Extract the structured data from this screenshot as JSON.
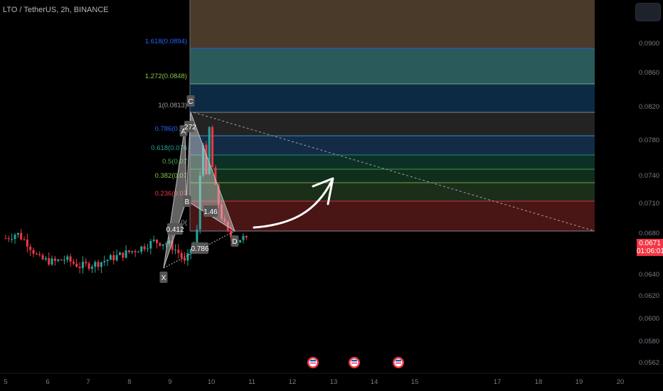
{
  "header": {
    "symbol": "LTO / TetherUS",
    "interval": "2h",
    "exchange": "BINANCE"
  },
  "last_price": {
    "value": "0.0671",
    "countdown": "01:06:01",
    "color": "#f23645"
  },
  "colors": {
    "up": "#26a69a",
    "down": "#f23645",
    "background": "#000000",
    "axis_text": "#787b86",
    "pattern_fill": "#d9d9d9",
    "arrow": "#ffffff"
  },
  "chart_data": {
    "type": "candlestick",
    "y_axis": {
      "ticks": [
        "0.0900",
        "0.0860",
        "0.0820",
        "0.0780",
        "0.0740",
        "0.0710",
        "0.0680",
        "0.0640",
        "0.0620",
        "0.0600",
        "0.0580",
        "0.0562"
      ],
      "range": [
        0.0555,
        0.0955
      ]
    },
    "x_axis": {
      "ticks": [
        "5",
        "6",
        "7",
        "8",
        "9",
        "10",
        "11",
        "12",
        "13",
        "14",
        "15",
        "17",
        "18",
        "19",
        "20"
      ],
      "unit": "day"
    },
    "fib_levels": [
      {
        "ratio": "1.618",
        "price": "0.0894",
        "label": "1.618(0.0894)",
        "label_color": "#2962ff",
        "line_color": "#2962ff",
        "fill": "#2a5a59"
      },
      {
        "ratio": "1.272",
        "price": "0.0848",
        "label": "1.272(0.0848)",
        "label_color": "#8bc34a",
        "line_color": "#81c784",
        "fill": "#0d2a44"
      },
      {
        "ratio": "1",
        "price": "0.0813",
        "label": "1(0.0813)",
        "label_color": "#9e9e9e",
        "line_color": "#9e9e9e",
        "fill": "#232323"
      },
      {
        "ratio": "0.786",
        "price": "0.078",
        "label": "0.786(0.07",
        "label_color": "#2962ff",
        "line_color": "#42a5f5",
        "fill": "#142b45"
      },
      {
        "ratio": "0.618",
        "price": "0.076",
        "label": "0.618(0.076",
        "label_color": "#26a69a",
        "line_color": "#26a69a",
        "fill": "#0c3026"
      },
      {
        "ratio": "0.5",
        "price": "0.074",
        "label": "0.5(0.07",
        "label_color": "#4caf50",
        "line_color": "#4caf50",
        "fill": "#0f2e1b"
      },
      {
        "ratio": "0.382",
        "price": "0.073",
        "label": "0.382(0.07",
        "label_color": "#8bc34a",
        "line_color": "#8bc34a",
        "fill": "#1b2e1a"
      },
      {
        "ratio": "0.236",
        "price": "0.071",
        "label": "0.236(0.07",
        "label_color": "#f23645",
        "line_color": "#f23645",
        "fill": "#4a1515"
      },
      {
        "ratio": "0",
        "price": "0.068",
        "label": "0(",
        "label_color": "#9e9e9e",
        "line_color": "#9e9e9e",
        "fill": null
      }
    ],
    "fib_extension_fill_top": "#4a3a2a",
    "harmonic_points": [
      {
        "name": "X",
        "price": 0.0648,
        "day": 9.85
      },
      {
        "name": "A",
        "price": 0.0793,
        "day": 10.32
      },
      {
        "name": "B",
        "price": 0.0714,
        "day": 10.4
      },
      {
        "name": "C",
        "price": 0.0813,
        "day": 10.48
      },
      {
        "name": "D",
        "price": 0.0678,
        "day": 11.35
      }
    ],
    "harmonic_ratios": [
      "0.412",
      "0.786",
      ".272",
      "1.46"
    ],
    "event_markers": [
      "12.5",
      "13.5",
      "14.5"
    ]
  }
}
